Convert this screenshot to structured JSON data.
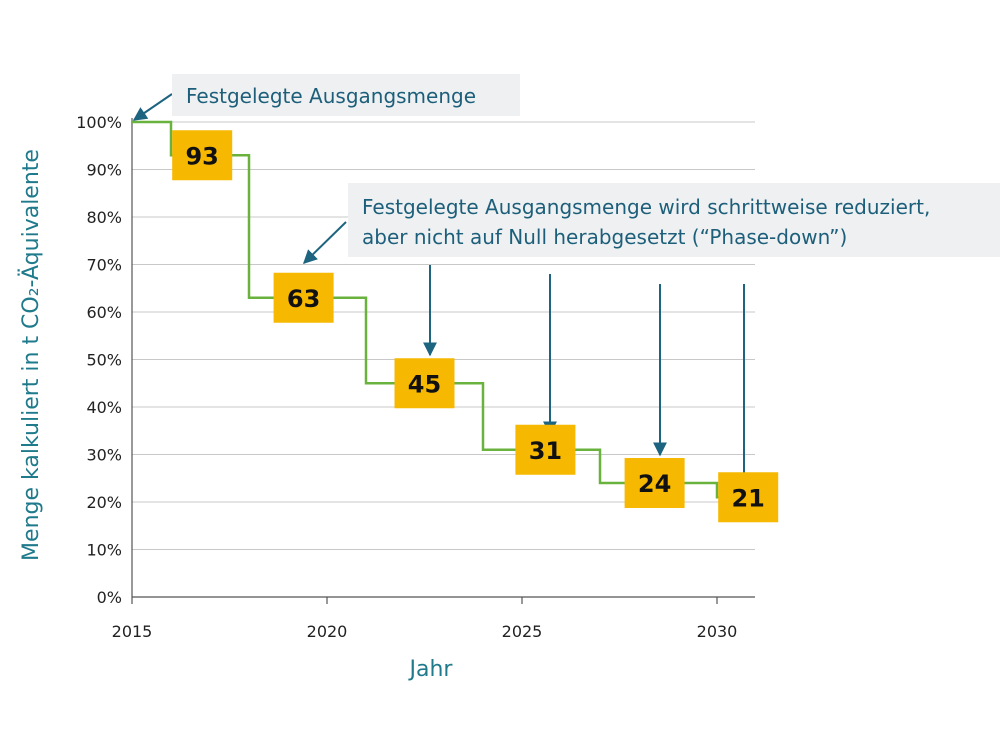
{
  "chart_data": {
    "type": "line",
    "step": true,
    "xlabel": "Jahr",
    "ylabel": "Menge kalkuliert in t CO₂-Äquivalente",
    "xlim": [
      2015,
      2031
    ],
    "ylim": [
      0,
      100
    ],
    "x_ticks": [
      "2015",
      "2020",
      "2025",
      "2030"
    ],
    "y_ticks": [
      "0%",
      "10%",
      "20%",
      "30%",
      "40%",
      "50%",
      "60%",
      "70%",
      "80%",
      "90%",
      "100%"
    ],
    "grid": true,
    "line_color": "#6ab23e",
    "label_box_color": "#f6b800",
    "arrow_color": "#1d6480",
    "steps": [
      {
        "start": 2015,
        "end": 2016,
        "value": 100
      },
      {
        "start": 2016,
        "end": 2018,
        "value": 93
      },
      {
        "start": 2018,
        "end": 2021,
        "value": 63
      },
      {
        "start": 2021,
        "end": 2024,
        "value": 45
      },
      {
        "start": 2024,
        "end": 2027,
        "value": 31
      },
      {
        "start": 2027,
        "end": 2030,
        "value": 24
      },
      {
        "start": 2030,
        "end": 2031,
        "value": 21
      }
    ],
    "data_labels": [
      {
        "x": 2016.8,
        "value": 93,
        "text": "93"
      },
      {
        "x": 2019.4,
        "value": 63,
        "text": "63"
      },
      {
        "x": 2022.5,
        "value": 45,
        "text": "45"
      },
      {
        "x": 2025.6,
        "value": 31,
        "text": "31"
      },
      {
        "x": 2028.4,
        "value": 24,
        "text": "24"
      },
      {
        "x": 2030.8,
        "value": 21,
        "text": "21"
      }
    ],
    "annotations": [
      {
        "lines": [
          "Festgelegte Ausgangsmenge"
        ]
      },
      {
        "lines": [
          "Festgelegte Ausgangsmenge wird schrittweise reduziert,",
          "aber nicht auf Null herabgesetzt (“Phase-down”)"
        ]
      }
    ]
  }
}
